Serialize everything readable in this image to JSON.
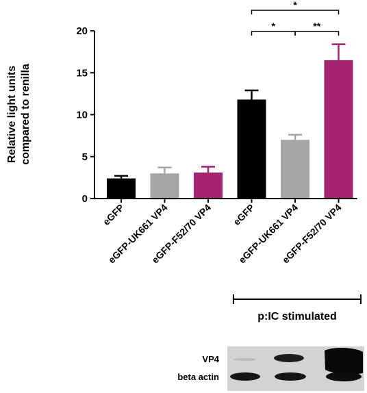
{
  "chart_data": {
    "type": "bar",
    "ylabel": [
      "Relative light units",
      "compared to renilla"
    ],
    "ylim": [
      0,
      20
    ],
    "yticks": [
      0,
      5,
      10,
      15,
      20
    ],
    "categories": [
      "eGFP",
      "eGFP-UK661 VP4",
      "eGFP-F52/70 VP4",
      "eGFP",
      "eGFP-UK661 VP4",
      "eGFP-F52/70 VP4"
    ],
    "values": [
      2.4,
      3.0,
      3.1,
      11.8,
      7.0,
      16.5
    ],
    "errors": [
      0.3,
      0.7,
      0.7,
      1.1,
      0.6,
      1.9
    ],
    "colors": [
      "#000000",
      "#a6a6a6",
      "#a3236e",
      "#000000",
      "#a6a6a6",
      "#a3236e"
    ],
    "group_label": "p:IC stimulated",
    "significance": [
      {
        "from": 3,
        "to": 4,
        "label": "*"
      },
      {
        "from": 4,
        "to": 5,
        "label": "**"
      },
      {
        "from": 3,
        "to": 5,
        "label": "*"
      }
    ],
    "grid": false
  },
  "blot": {
    "labels": [
      "VP4",
      "beta actin"
    ]
  }
}
